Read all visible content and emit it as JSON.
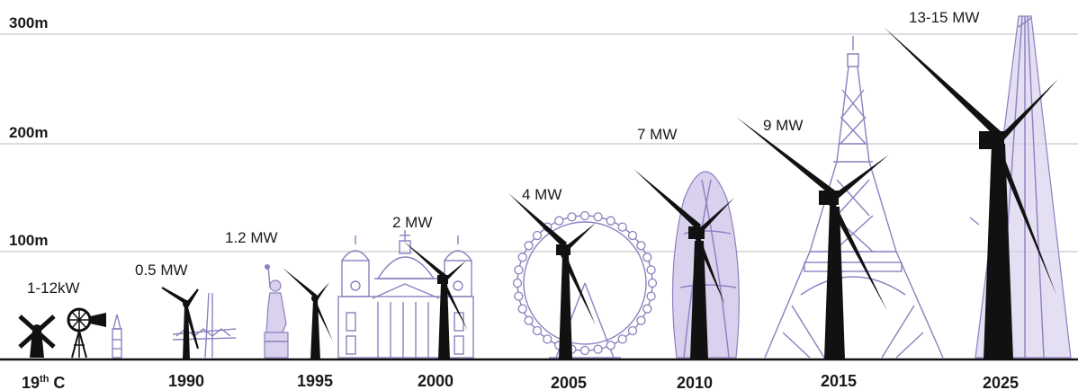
{
  "height_axis": {
    "ticks": [
      {
        "label": "300m",
        "value": 300
      },
      {
        "label": "200m",
        "value": 200
      },
      {
        "label": "100m",
        "value": 100
      }
    ]
  },
  "eras": [
    {
      "year": "19",
      "year_sup": "th",
      "year_suffix": " C",
      "power": "1-12kW"
    },
    {
      "year": "1990",
      "power": "0.5 MW"
    },
    {
      "year": "1995",
      "power": "1.2 MW"
    },
    {
      "year": "2000",
      "power": "2 MW"
    },
    {
      "year": "2005",
      "power": "4 MW"
    },
    {
      "year": "2010",
      "power": "7 MW"
    },
    {
      "year": "2015",
      "power": "9 MW"
    },
    {
      "year": "2025",
      "power": "13-15 MW"
    }
  ],
  "colors": {
    "turbine": "#111111",
    "landmark": "#8e7fbf",
    "landmark_fill": "#d9d1ee",
    "gridline": "#c8c8c8"
  }
}
